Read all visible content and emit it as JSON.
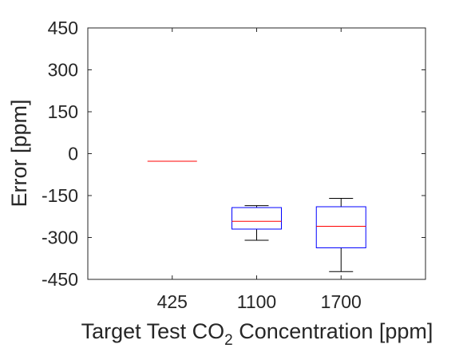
{
  "chart_data": {
    "type": "box",
    "xlabel": {
      "prefix": "Target Test CO",
      "subscript": "2",
      "suffix": " Concentration [ppm]"
    },
    "ylabel": "Error [ppm]",
    "ylim": [
      -450,
      450
    ],
    "yticks": [
      -450,
      -300,
      -150,
      0,
      150,
      300,
      450
    ],
    "grid": false,
    "categories": [
      "425",
      "1100",
      "1700"
    ],
    "boxes": [
      {
        "category": "425",
        "whisker_low": -27,
        "q1": -27,
        "median": -27,
        "q3": -27,
        "whisker_high": -27
      },
      {
        "category": "1100",
        "whisker_low": -310,
        "q1": -270,
        "median": -242,
        "q3": -193,
        "whisker_high": -186
      },
      {
        "category": "1700",
        "whisker_low": -422,
        "q1": -337,
        "median": -260,
        "q3": -190,
        "whisker_high": -160
      }
    ],
    "colors": {
      "box": "#0000ff",
      "median": "#ff0000",
      "whisker": "#000000",
      "axes": "#262626"
    }
  }
}
